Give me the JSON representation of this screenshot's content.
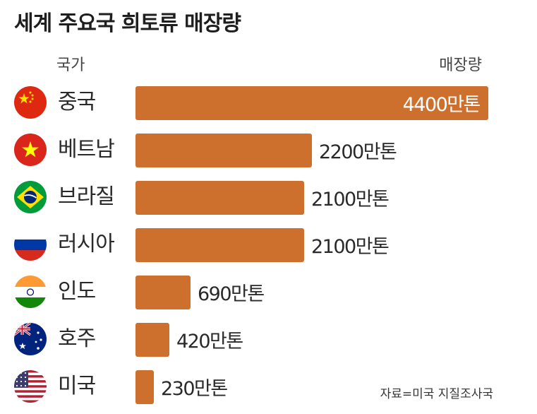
{
  "title": "세계 주요국 희토류 매장량",
  "header": {
    "country_col": "국가",
    "value_col": "매장량"
  },
  "source": "자료=미국 지질조사국",
  "colors": {
    "bar": "#CD6F2D",
    "inside_label": "#ffffff",
    "outside_label": "#2a2a2a"
  },
  "chart_data": {
    "type": "bar",
    "orientation": "horizontal",
    "title": "세계 주요국 희토류 매장량",
    "xlabel": "",
    "ylabel": "",
    "unit": "만톤",
    "categories": [
      "중국",
      "베트남",
      "브라질",
      "러시아",
      "인도",
      "호주",
      "미국"
    ],
    "values": [
      4400,
      2200,
      2100,
      2100,
      690,
      420,
      230
    ],
    "labels": [
      "4400만톤",
      "2200만톤",
      "2100만톤",
      "2100만톤",
      "690만톤",
      "420만톤",
      "230만톤"
    ],
    "flags": [
      "china-flag-icon",
      "vietnam-flag-icon",
      "brazil-flag-icon",
      "russia-flag-icon",
      "india-flag-icon",
      "australia-flag-icon",
      "usa-flag-icon"
    ]
  }
}
